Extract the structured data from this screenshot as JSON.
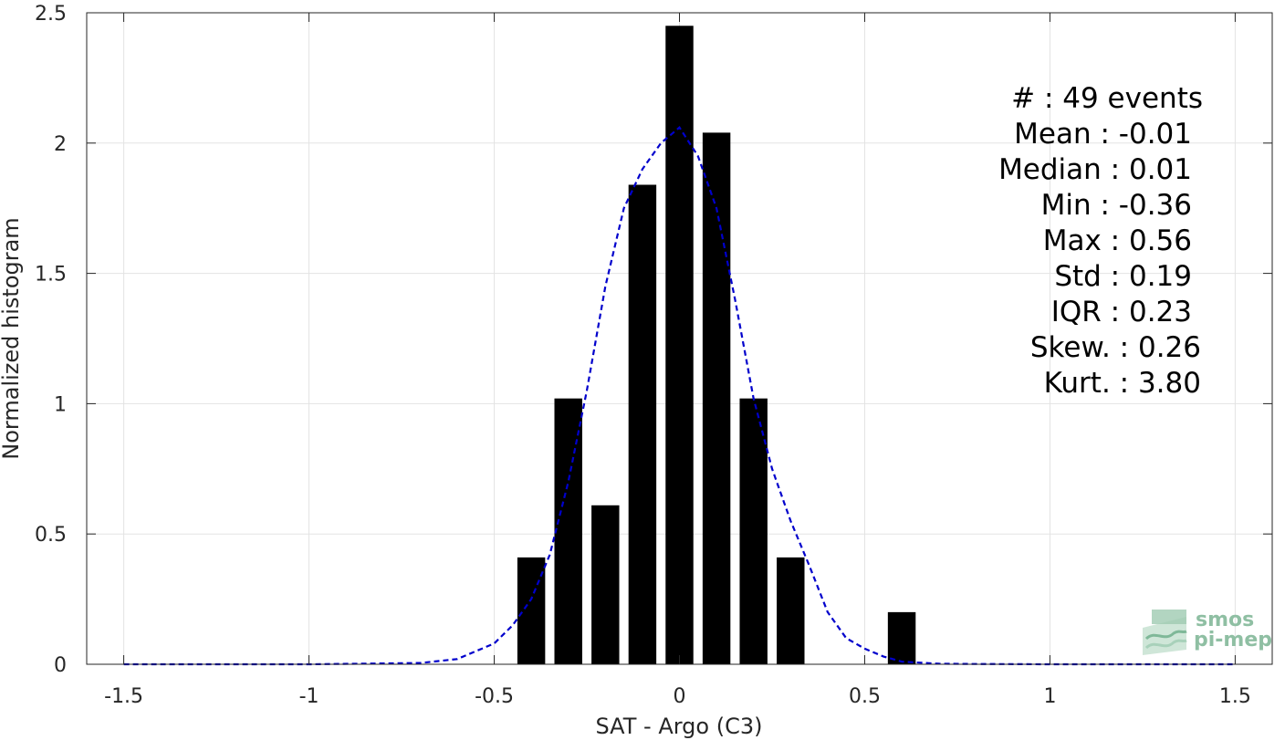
{
  "chart_data": {
    "type": "bar",
    "xlabel": "SAT - Argo (C3)",
    "ylabel": "Normalized histogram",
    "xlim": [
      -1.6,
      1.6
    ],
    "ylim": [
      0,
      2.5
    ],
    "xticks": [
      -1.5,
      -1,
      -0.5,
      0,
      0.5,
      1,
      1.5
    ],
    "xtick_labels": [
      "-1.5",
      "-1",
      "-0.5",
      "0",
      "0.5",
      "1",
      "1.5"
    ],
    "yticks": [
      0,
      0.5,
      1,
      1.5,
      2,
      2.5
    ],
    "ytick_labels": [
      "0",
      "0.5",
      "1",
      "1.5",
      "2",
      "2.5"
    ],
    "grid": true,
    "bar_color": "#000000",
    "bar_width": 0.075,
    "bars": {
      "x": [
        -0.4,
        -0.3,
        -0.2,
        -0.1,
        0.0,
        0.1,
        0.2,
        0.3,
        0.6
      ],
      "values": [
        0.41,
        1.02,
        0.61,
        1.84,
        2.45,
        2.04,
        1.02,
        0.41,
        0.2
      ]
    },
    "fit_curve": {
      "style": "dashed",
      "color": "#0000cc",
      "x": [
        -1.5,
        -1.2,
        -1.0,
        -0.8,
        -0.7,
        -0.6,
        -0.5,
        -0.45,
        -0.4,
        -0.35,
        -0.3,
        -0.25,
        -0.2,
        -0.15,
        -0.1,
        -0.05,
        0.0,
        0.05,
        0.1,
        0.15,
        0.2,
        0.25,
        0.3,
        0.35,
        0.4,
        0.45,
        0.5,
        0.55,
        0.6,
        0.7,
        0.8,
        1.0,
        1.2,
        1.5
      ],
      "y": [
        0,
        0,
        0,
        0.003,
        0.005,
        0.02,
        0.08,
        0.15,
        0.25,
        0.42,
        0.7,
        1.05,
        1.45,
        1.75,
        1.9,
        2.0,
        2.06,
        1.95,
        1.75,
        1.4,
        1.02,
        0.75,
        0.55,
        0.38,
        0.2,
        0.1,
        0.06,
        0.03,
        0.01,
        0.002,
        0.001,
        0,
        0,
        0
      ]
    },
    "annotations": [
      "#  : 49 events",
      "Mean : -0.01",
      "Median : 0.01",
      "Min : -0.36",
      "Max : 0.56",
      "Std : 0.19",
      "IQR : 0.23",
      "Skew. : 0.26",
      "Kurt. : 3.80"
    ]
  },
  "logo": {
    "line1": "smos",
    "line2": "pi-mep"
  }
}
